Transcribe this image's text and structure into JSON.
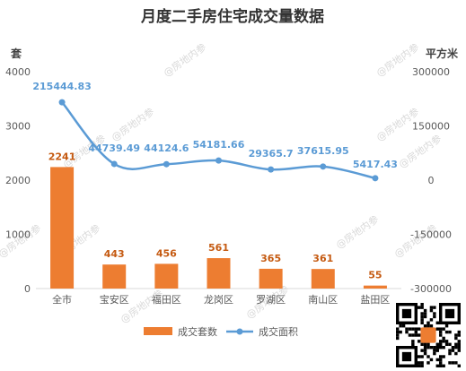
{
  "chart_data": {
    "type": "bar",
    "title": "月度二手房住宅成交量数据",
    "categories": [
      "全市",
      "宝安区",
      "福田区",
      "龙岗区",
      "罗湖区",
      "南山区",
      "盐田区"
    ],
    "left_unit": "套",
    "right_unit": "平方米",
    "left_ylim": [
      0,
      4000
    ],
    "left_ticks": [
      0,
      1000,
      2000,
      3000,
      4000
    ],
    "right_ylim": [
      -300000,
      300000
    ],
    "right_ticks": [
      -300000,
      -150000,
      0,
      150000,
      300000
    ],
    "series": [
      {
        "name": "成交套数",
        "type": "bar",
        "axis": "left",
        "color": "#ed7d31",
        "values": [
          2241,
          443,
          456,
          561,
          365,
          361,
          55
        ],
        "labels": [
          "2241",
          "443",
          "456",
          "561",
          "365",
          "361",
          "55"
        ]
      },
      {
        "name": "成交面积",
        "type": "line",
        "axis": "right",
        "color": "#5b9bd5",
        "values": [
          215444.83,
          44739.49,
          44124.6,
          54181.66,
          29365.7,
          37615.95,
          5417.43
        ],
        "labels": [
          "215444.83",
          "44739.49",
          "44124.6",
          "54181.66",
          "29365.7",
          "37615.95",
          "5417.43"
        ]
      }
    ],
    "legend_position": "bottom",
    "grid": false
  },
  "watermark": "@房地内参"
}
